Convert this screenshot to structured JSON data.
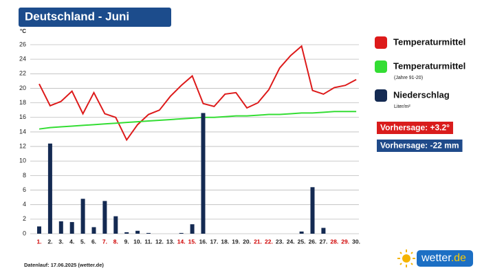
{
  "chart_data": {
    "type": "combo",
    "title": "Deutschland - Juni",
    "y_label": "°C",
    "categories": [
      "1.",
      "2.",
      "3.",
      "4.",
      "5.",
      "6.",
      "7.",
      "8.",
      "9.",
      "10.",
      "11.",
      "12.",
      "13.",
      "14.",
      "15.",
      "16.",
      "17.",
      "18.",
      "19.",
      "20.",
      "21.",
      "22.",
      "23.",
      "24.",
      "25.",
      "26.",
      "27.",
      "28.",
      "29.",
      "30."
    ],
    "category_colors": [
      "#d00000",
      "#222",
      "#222",
      "#222",
      "#222",
      "#222",
      "#d00000",
      "#d00000",
      "#222",
      "#222",
      "#222",
      "#222",
      "#222",
      "#d00000",
      "#d00000",
      "#222",
      "#222",
      "#222",
      "#222",
      "#222",
      "#d00000",
      "#d00000",
      "#222",
      "#222",
      "#222",
      "#222",
      "#222",
      "#d00000",
      "#d00000",
      "#222"
    ],
    "ylim": [
      0,
      26
    ],
    "yticks": [
      0,
      2,
      4,
      6,
      8,
      10,
      12,
      14,
      16,
      18,
      20,
      22,
      24,
      26
    ],
    "grid": true,
    "series": [
      {
        "name": "Temperaturmittel",
        "type": "line",
        "color": "#dd1a1a",
        "values": [
          20.6,
          17.6,
          18.2,
          19.6,
          16.5,
          19.4,
          16.5,
          16.0,
          12.9,
          15.0,
          16.4,
          17.0,
          18.9,
          20.4,
          21.7,
          17.9,
          17.5,
          19.2,
          19.4,
          17.3,
          18.0,
          19.8,
          22.8,
          24.5,
          25.8,
          19.7,
          19.2,
          20.1,
          20.4,
          21.2
        ]
      },
      {
        "name": "Temperaturmittel",
        "note": "(Jahre 91-20)",
        "type": "line",
        "color": "#33dd33",
        "values": [
          14.4,
          14.6,
          14.7,
          14.8,
          14.9,
          15.0,
          15.1,
          15.2,
          15.3,
          15.4,
          15.5,
          15.6,
          15.7,
          15.8,
          15.9,
          16.0,
          16.0,
          16.1,
          16.2,
          16.2,
          16.3,
          16.4,
          16.4,
          16.5,
          16.6,
          16.6,
          16.7,
          16.8,
          16.8,
          16.8
        ]
      },
      {
        "name": "Niederschlag",
        "note": "Liter/m²",
        "type": "bar",
        "color": "#142a52",
        "values": [
          1.0,
          12.4,
          1.7,
          1.6,
          4.8,
          0.9,
          4.5,
          2.4,
          0.2,
          0.4,
          0.1,
          0,
          0,
          0.1,
          1.3,
          16.6,
          0,
          0,
          0,
          0,
          0,
          0,
          0,
          0,
          0.3,
          6.4,
          0.8,
          0,
          0,
          0
        ]
      }
    ],
    "badges": [
      {
        "text": "Vorhersage: +3.2°",
        "color": "#d91c1c"
      },
      {
        "text": "Vorhersage: -22 mm",
        "color": "#1f4a8a"
      }
    ],
    "footer": "Datenlauf: 17.06.2025 (wetter.de)",
    "logo_main": "wetter",
    "logo_tld": ".de"
  }
}
